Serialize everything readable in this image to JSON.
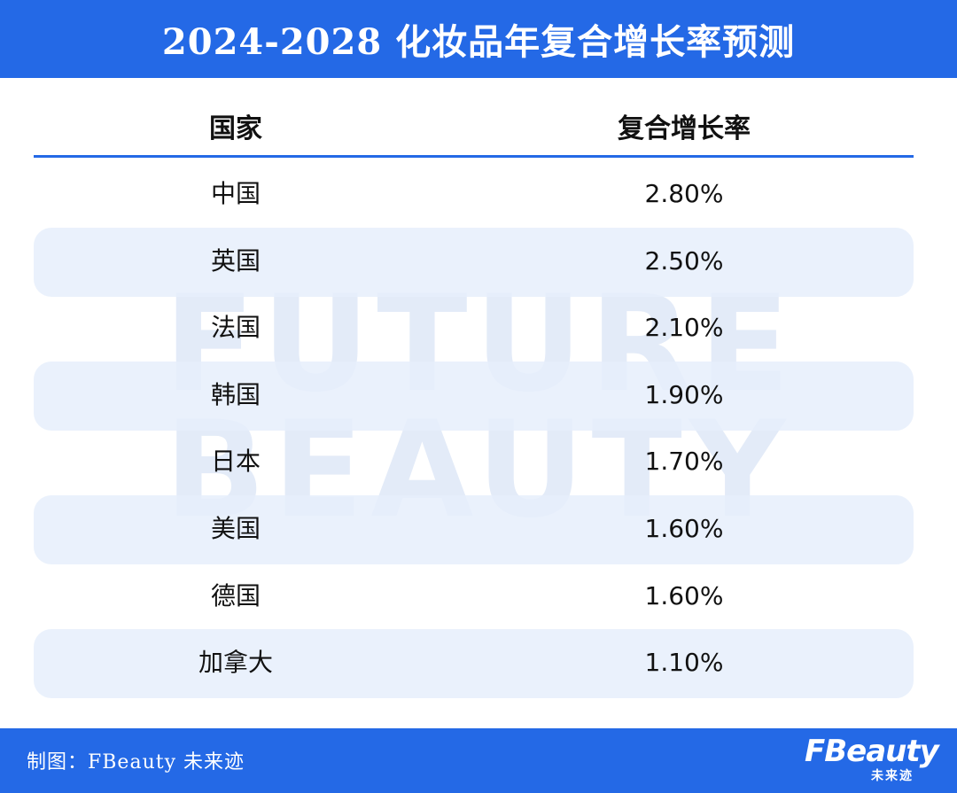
{
  "header": {
    "title": "2024-2028 化妆品年复合增长率预测"
  },
  "watermark": {
    "line1": "FUTURE",
    "line2": "BEAUTY"
  },
  "footer": {
    "credit": "制图：FBeauty 未来迹",
    "logo_main": "FBeauty",
    "logo_sub": "未来迹"
  },
  "chart_data": {
    "type": "table",
    "columns": [
      "国家",
      "复合增长率"
    ],
    "rows": [
      [
        "中国",
        "2.80%"
      ],
      [
        "英国",
        "2.50%"
      ],
      [
        "法国",
        "2.10%"
      ],
      [
        "韩国",
        "1.90%"
      ],
      [
        "日本",
        "1.70%"
      ],
      [
        "美国",
        "1.60%"
      ],
      [
        "德国",
        "1.60%"
      ],
      [
        "加拿大",
        "1.10%"
      ]
    ],
    "values": [
      2.8,
      2.5,
      2.1,
      1.9,
      1.7,
      1.6,
      1.6,
      1.1
    ]
  },
  "colors": {
    "accent": "#2469e6",
    "row_band": "#e6eefb",
    "text": "#111111"
  }
}
